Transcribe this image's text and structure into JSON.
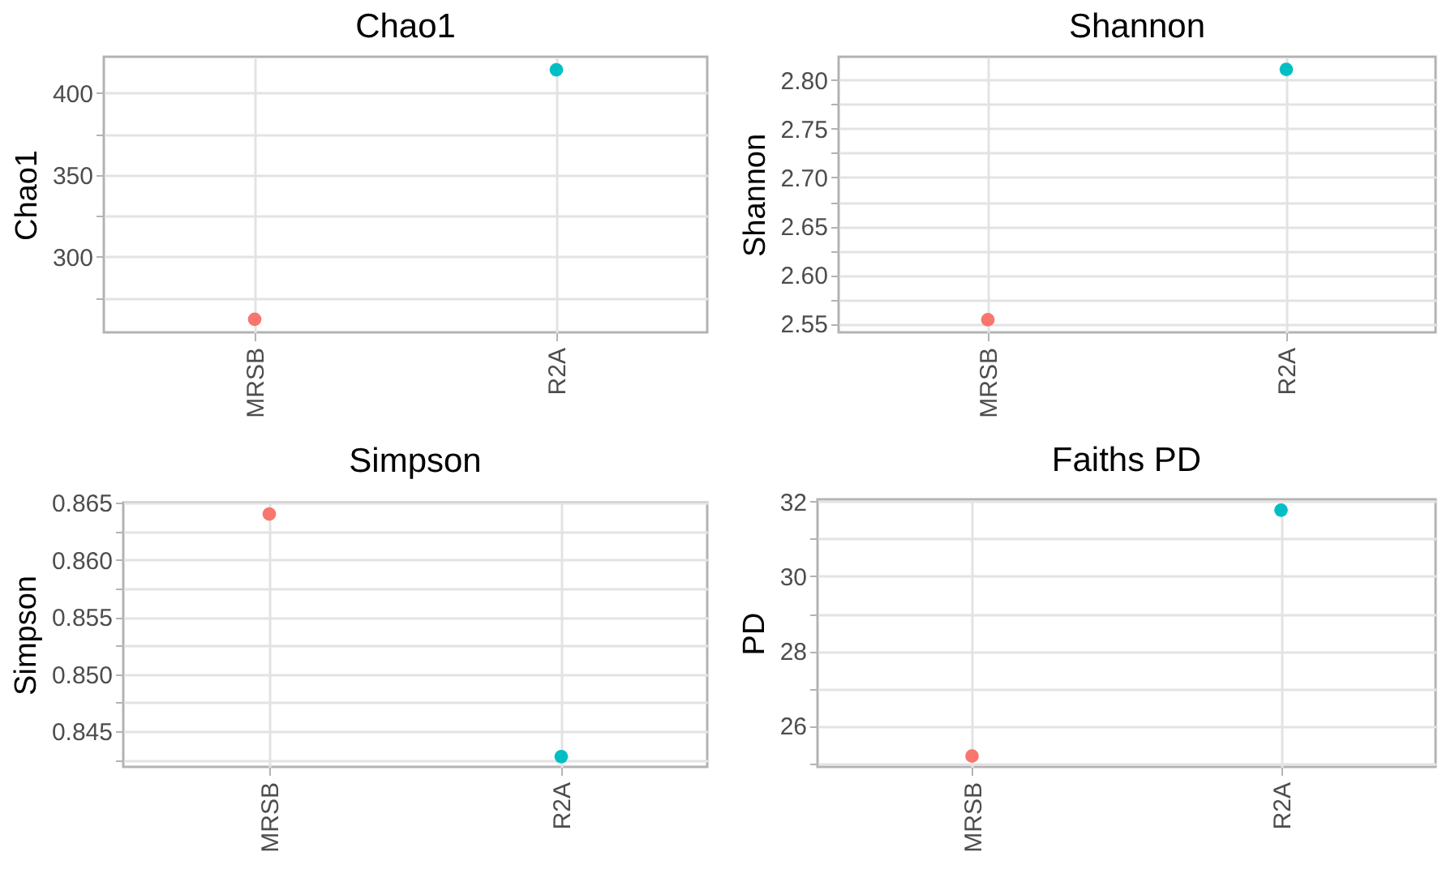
{
  "chart_data": [
    {
      "type": "scatter",
      "title": "Chao1",
      "ylabel": "Chao1",
      "categories": [
        "MRSB",
        "R2A"
      ],
      "values": [
        262,
        414
      ],
      "colors": [
        "#f8766d",
        "#00bfc4"
      ],
      "ylim": [
        254,
        422
      ],
      "yticks": [
        {
          "value": 275,
          "label": null
        },
        300,
        {
          "value": 325,
          "label": null
        },
        350,
        {
          "value": 375,
          "label": null
        },
        400
      ],
      "grid": true
    },
    {
      "type": "scatter",
      "title": "Shannon",
      "ylabel": "Shannon",
      "categories": [
        "MRSB",
        "R2A"
      ],
      "values": [
        2.554,
        2.811
      ],
      "colors": [
        "#f8766d",
        "#00bfc4"
      ],
      "ylim": [
        2.541,
        2.824
      ],
      "yticks": [
        2.55,
        {
          "value": 2.575,
          "label": null
        },
        {
          "value": 2.6,
          "label": "2.60"
        },
        {
          "value": 2.625,
          "label": null
        },
        2.65,
        {
          "value": 2.675,
          "label": null
        },
        {
          "value": 2.7,
          "label": "2.70"
        },
        {
          "value": 2.725,
          "label": null
        },
        2.75,
        {
          "value": 2.775,
          "label": null
        },
        {
          "value": 2.8,
          "label": "2.80"
        }
      ],
      "grid": true
    },
    {
      "type": "scatter",
      "title": "Simpson",
      "ylabel": "Simpson",
      "categories": [
        "MRSB",
        "R2A"
      ],
      "values": [
        0.864,
        0.8428
      ],
      "colors": [
        "#f8766d",
        "#00bfc4"
      ],
      "ylim": [
        0.8419,
        0.865
      ],
      "yticks": [
        {
          "value": 0.8425,
          "label": null
        },
        0.845,
        {
          "value": 0.8475,
          "label": null
        },
        {
          "value": 0.85,
          "label": "0.850"
        },
        {
          "value": 0.8525,
          "label": null
        },
        0.855,
        {
          "value": 0.8575,
          "label": null
        },
        {
          "value": 0.86,
          "label": "0.860"
        },
        {
          "value": 0.8625,
          "label": null
        },
        0.865
      ],
      "grid": true
    },
    {
      "type": "scatter",
      "title": "Faiths PD",
      "ylabel": "PD",
      "categories": [
        "MRSB",
        "R2A"
      ],
      "values": [
        25.19,
        31.77
      ],
      "colors": [
        "#f8766d",
        "#00bfc4"
      ],
      "ylim": [
        24.9,
        32.06
      ],
      "yticks": [
        {
          "value": 25,
          "label": null
        },
        26,
        {
          "value": 27,
          "label": null
        },
        28,
        {
          "value": 29,
          "label": null
        },
        30,
        {
          "value": 31,
          "label": null
        },
        32
      ],
      "grid": true
    }
  ]
}
